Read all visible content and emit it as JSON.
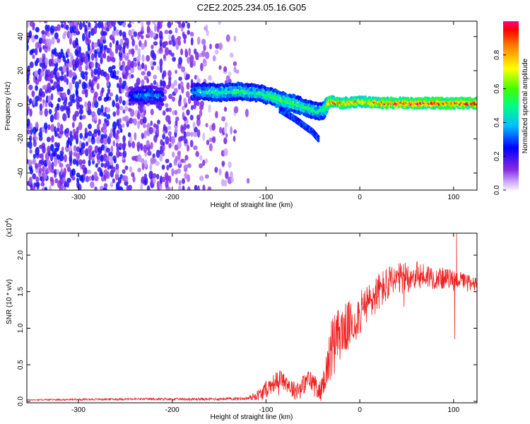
{
  "title": "C2E2.2025.234.05.16.G05",
  "chart_data": [
    {
      "type": "heatmap",
      "xlabel": "Height of straight line (km)",
      "ylabel": "Frequency (Hz)",
      "xlim": [
        -355,
        125
      ],
      "ylim": [
        -50,
        49
      ],
      "xticks": [
        -300,
        -200,
        -100,
        0,
        100
      ],
      "xtick_labels": [
        "-300",
        "-200",
        "-100",
        "0",
        "100"
      ],
      "yticks": [
        -40,
        -20,
        0,
        20,
        40
      ],
      "ytick_labels": [
        "-40",
        "-20",
        "0",
        "20",
        "40"
      ],
      "colorbar": {
        "label": "Normalized spectral amplitude",
        "range": [
          0,
          1
        ],
        "ticks": [
          0.0,
          0.2,
          0.4,
          0.6,
          0.8
        ],
        "tick_labels": [
          "0.0",
          "0.2",
          "0.4",
          "0.6",
          "0.8"
        ]
      },
      "signal_trace": {
        "x": [
          -245,
          -225,
          -210,
          -180,
          -170,
          -150,
          -130,
          -110,
          -95,
          -80,
          -65,
          -55,
          -45,
          -38,
          -32,
          -20,
          0,
          20,
          50,
          80,
          100,
          125
        ],
        "freq": [
          5,
          6,
          5,
          7,
          8,
          7,
          8,
          7,
          5,
          2,
          0,
          -2,
          -4,
          -3,
          2,
          1,
          2,
          1,
          1,
          1,
          1,
          1
        ],
        "amplitude": [
          0.3,
          0.38,
          0.3,
          0.35,
          0.45,
          0.5,
          0.5,
          0.5,
          0.55,
          0.6,
          0.55,
          0.52,
          0.5,
          0.55,
          0.9,
          0.85,
          0.82,
          0.92,
          0.96,
          0.98,
          0.96,
          0.96
        ]
      },
      "branch_trace": {
        "x": [
          -85,
          -70,
          -60,
          -50,
          -44
        ],
        "freq": [
          -3,
          -8,
          -12,
          -16,
          -20
        ]
      }
    },
    {
      "type": "line",
      "ylabel": "SNR (10 * v/v)",
      "y_multiplier": "(x10",
      "y_multiplier_exp": "4",
      "xlabel": "Height of straight line (km)",
      "xlim": [
        -355,
        125
      ],
      "ylim": [
        -0.02,
        2.3
      ],
      "xticks": [
        -300,
        -200,
        -100,
        0,
        100
      ],
      "xtick_labels": [
        "-300",
        "-200",
        "-100",
        "0",
        "100"
      ],
      "yticks": [
        0.0,
        0.5,
        1.0,
        1.5,
        2.0
      ],
      "ytick_labels": [
        "0.0",
        "0.5",
        "1.0",
        "1.5",
        "2.0"
      ],
      "color": "#ee2222",
      "envelope": {
        "x": [
          -355,
          -250,
          -160,
          -120,
          -105,
          -95,
          -85,
          -78,
          -70,
          -62,
          -55,
          -48,
          -42,
          -38,
          -34,
          -30,
          -26,
          -20,
          -10,
          0,
          10,
          20,
          30,
          40,
          50,
          60,
          70,
          80,
          90,
          100,
          110,
          125
        ],
        "y": [
          0.02,
          0.03,
          0.03,
          0.04,
          0.1,
          0.22,
          0.32,
          0.26,
          0.15,
          0.2,
          0.3,
          0.25,
          0.12,
          0.3,
          0.5,
          0.75,
          0.85,
          0.95,
          1.05,
          1.2,
          1.35,
          1.5,
          1.6,
          1.65,
          1.7,
          1.72,
          1.72,
          1.7,
          1.68,
          1.68,
          1.65,
          1.62
        ]
      },
      "noise_amplitude": {
        "x": [
          -355,
          -120,
          -100,
          -40,
          -30,
          0,
          60,
          125
        ],
        "y": [
          0.01,
          0.02,
          0.12,
          0.15,
          0.4,
          0.3,
          0.2,
          0.08
        ]
      },
      "spikes": [
        {
          "x": 103,
          "y": 2.3
        },
        {
          "x": 101,
          "y": 0.85
        }
      ]
    }
  ]
}
